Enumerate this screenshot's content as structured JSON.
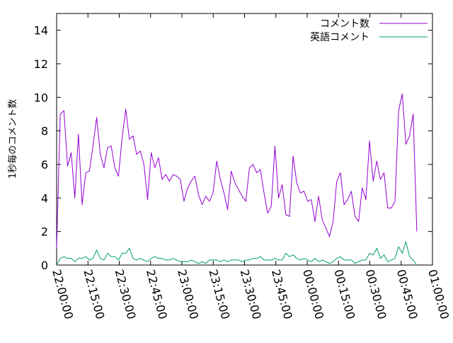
{
  "chart_data": {
    "type": "line",
    "ylabel": "1秒毎のコメント数",
    "xlabel": "",
    "ylim": [
      0,
      15
    ],
    "xlim": [
      "22:00:00",
      "01:00:00"
    ],
    "y_ticks": [
      0,
      2,
      4,
      6,
      8,
      10,
      12,
      14
    ],
    "x_ticks": [
      "22:00:00",
      "22:15:00",
      "22:30:00",
      "22:45:00",
      "23:00:00",
      "23:15:00",
      "23:30:00",
      "23:45:00",
      "00:00:00",
      "00:15:00",
      "00:30:00",
      "00:45:00",
      "01:00:00"
    ],
    "grid": false,
    "legend_position": "top-right",
    "x_start": "22:00:00",
    "x_end": "00:52:30",
    "series": [
      {
        "name": "コメント数",
        "color": "#9400d3",
        "values": [
          1.0,
          9.0,
          9.2,
          5.9,
          6.7,
          4.0,
          7.8,
          3.6,
          5.5,
          5.6,
          7.1,
          8.8,
          6.6,
          5.8,
          7.0,
          7.1,
          5.8,
          5.3,
          7.6,
          9.3,
          7.5,
          7.7,
          6.6,
          6.8,
          6.0,
          3.9,
          6.7,
          5.8,
          6.4,
          5.1,
          5.4,
          5.0,
          5.4,
          5.3,
          5.1,
          3.8,
          4.6,
          5.0,
          5.3,
          4.2,
          3.6,
          4.1,
          3.8,
          4.3,
          6.2,
          5.1,
          4.3,
          3.3,
          5.6,
          4.9,
          4.5,
          4.1,
          3.8,
          5.8,
          6.0,
          5.5,
          5.7,
          4.3,
          3.1,
          3.5,
          7.1,
          4.0,
          4.8,
          3.0,
          2.9,
          6.5,
          4.9,
          4.3,
          4.4,
          3.8,
          3.9,
          2.6,
          4.1,
          2.7,
          2.2,
          1.7,
          2.6,
          5.0,
          5.5,
          3.6,
          3.9,
          4.4,
          2.9,
          2.6,
          4.6,
          3.9,
          7.4,
          5.0,
          6.2,
          5.1,
          5.5,
          3.4,
          3.4,
          3.8,
          9.2,
          10.2,
          7.2,
          7.7,
          9.0,
          2.0
        ],
        "linewidth": 1
      },
      {
        "name": "英語コメント",
        "color": "#009e73",
        "values": [
          0.0,
          0.4,
          0.5,
          0.4,
          0.4,
          0.2,
          0.4,
          0.4,
          0.5,
          0.3,
          0.4,
          0.9,
          0.4,
          0.3,
          0.7,
          0.5,
          0.5,
          0.3,
          0.7,
          0.7,
          1.0,
          0.4,
          0.3,
          0.4,
          0.3,
          0.2,
          0.4,
          0.5,
          0.4,
          0.4,
          0.3,
          0.3,
          0.4,
          0.3,
          0.2,
          0.2,
          0.2,
          0.3,
          0.2,
          0.1,
          0.2,
          0.1,
          0.3,
          0.3,
          0.3,
          0.2,
          0.3,
          0.2,
          0.3,
          0.3,
          0.3,
          0.2,
          0.3,
          0.3,
          0.4,
          0.4,
          0.5,
          0.3,
          0.3,
          0.3,
          0.4,
          0.3,
          0.3,
          0.7,
          0.5,
          0.6,
          0.4,
          0.3,
          0.4,
          0.3,
          0.2,
          0.4,
          0.2,
          0.3,
          0.2,
          0.1,
          0.2,
          0.4,
          0.5,
          0.3,
          0.3,
          0.3,
          0.1,
          0.2,
          0.3,
          0.3,
          0.7,
          0.6,
          1.0,
          0.4,
          0.6,
          0.2,
          0.3,
          0.4,
          1.1,
          0.7,
          1.4,
          0.5,
          0.3,
          0.0
        ],
        "linewidth": 1
      }
    ]
  }
}
